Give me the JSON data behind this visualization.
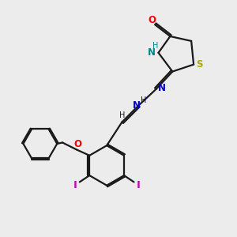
{
  "bg_color": "#ececec",
  "bond_color": "#1a1a1a",
  "N_color": "#0000cc",
  "O_color": "#ff0000",
  "S_color": "#aaaa00",
  "I_color": "#cc00bb",
  "NH_color": "#008888",
  "figsize": [
    3.0,
    3.0
  ],
  "dpi": 100,
  "xlim": [
    0,
    10
  ],
  "ylim": [
    0,
    10
  ]
}
